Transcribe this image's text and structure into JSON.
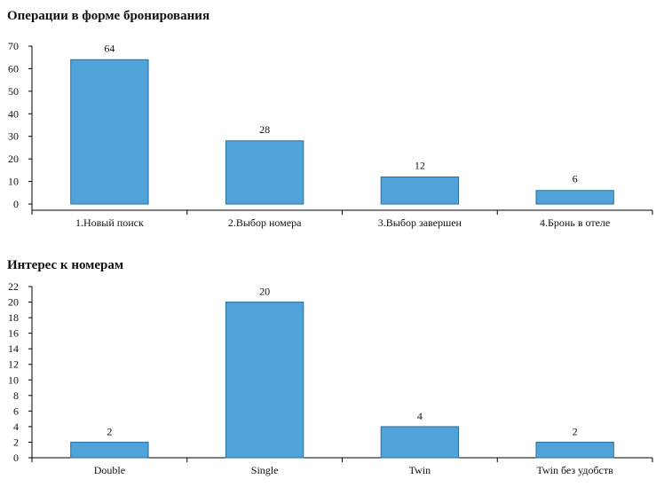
{
  "charts_meta": {
    "bar_fill": "#4fa3d9",
    "bar_stroke": "#2a6f9e",
    "axis_color": "#000000"
  },
  "chart_data": [
    {
      "type": "bar",
      "title": "Операции в форме бронирования",
      "categories": [
        "1.Новый поиск",
        "2.Выбор номера",
        "3.Выбор завершен",
        "4.Бронь в отеле"
      ],
      "values": [
        64,
        28,
        12,
        6
      ],
      "ylim": [
        0,
        70
      ],
      "yticks": [
        0,
        10,
        20,
        30,
        40,
        50,
        60,
        70
      ],
      "xlabel": "",
      "ylabel": "",
      "grid": false,
      "data_labels": true
    },
    {
      "type": "bar",
      "title": "Интерес к номерам",
      "categories": [
        "Double",
        "Single",
        "Twin",
        "Twin без удобств"
      ],
      "values": [
        2,
        20,
        4,
        2
      ],
      "ylim": [
        0,
        22
      ],
      "yticks": [
        0,
        2,
        4,
        6,
        8,
        10,
        12,
        14,
        16,
        18,
        20,
        22
      ],
      "xlabel": "",
      "ylabel": "",
      "grid": false,
      "data_labels": true
    }
  ]
}
